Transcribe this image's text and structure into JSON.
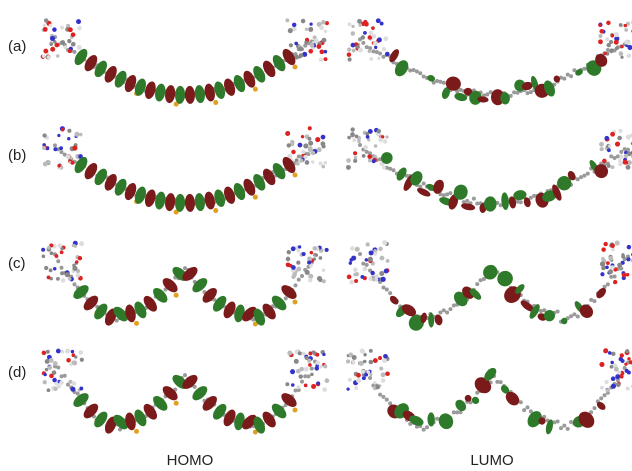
{
  "row_labels": [
    "(a)",
    "(b)",
    "(c)",
    "(d)"
  ],
  "column_labels": [
    "HOMO",
    "LUMO"
  ]
}
